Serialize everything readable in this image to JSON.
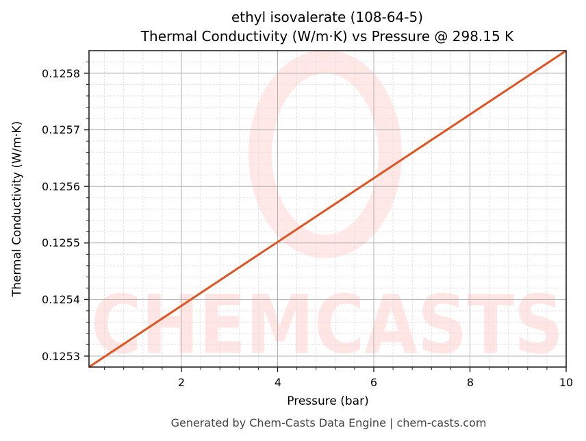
{
  "chart": {
    "title_line1": "ethyl isovalerate (108-64-5)",
    "title_line2": "Thermal Conductivity (W/m·K) vs Pressure @ 298.15 K",
    "xlabel": "Pressure (bar)",
    "ylabel": "Thermal Conductivity (W/m·K)",
    "footer": "Generated by Chem-Casts Data Engine | chem-casts.com",
    "watermark": "CHEMCASTS",
    "line_color": "#e0531f",
    "x_ticks": [
      "2",
      "4",
      "6",
      "8",
      "10"
    ],
    "y_ticks": [
      "0.1258",
      "0.1257",
      "0.1256",
      "0.1255",
      "0.1254",
      "0.1253"
    ]
  },
  "chart_data": {
    "type": "line",
    "title": "ethyl isovalerate (108-64-5) — Thermal Conductivity (W/m·K) vs Pressure @ 298.15 K",
    "xlabel": "Pressure (bar)",
    "ylabel": "Thermal Conductivity (W/m·K)",
    "xlim": [
      0.08,
      10
    ],
    "ylim": [
      0.125281,
      0.12584
    ],
    "grid": true,
    "legend": "none",
    "x_tick_labels": [
      "2",
      "4",
      "6",
      "8",
      "10"
    ],
    "y_tick_labels": [
      "0.1253",
      "0.1254",
      "0.1255",
      "0.1256",
      "0.1257",
      "0.1258"
    ],
    "series": [
      {
        "name": "Thermal Conductivity",
        "color": "#e0531f",
        "x": [
          0.08,
          2,
          4,
          6,
          8,
          10
        ],
        "y": [
          0.125281,
          0.125389,
          0.125502,
          0.125615,
          0.125727,
          0.12584
        ]
      }
    ]
  }
}
